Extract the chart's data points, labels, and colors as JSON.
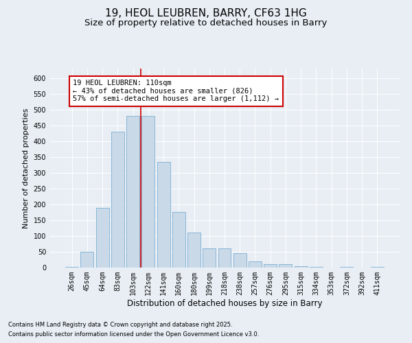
{
  "title1": "19, HEOL LEUBREN, BARRY, CF63 1HG",
  "title2": "Size of property relative to detached houses in Barry",
  "xlabel": "Distribution of detached houses by size in Barry",
  "ylabel": "Number of detached properties",
  "categories": [
    "26sqm",
    "45sqm",
    "64sqm",
    "83sqm",
    "103sqm",
    "122sqm",
    "141sqm",
    "160sqm",
    "180sqm",
    "199sqm",
    "218sqm",
    "238sqm",
    "257sqm",
    "276sqm",
    "295sqm",
    "315sqm",
    "334sqm",
    "353sqm",
    "372sqm",
    "392sqm",
    "411sqm"
  ],
  "values": [
    3,
    50,
    190,
    430,
    480,
    480,
    335,
    175,
    110,
    60,
    60,
    45,
    20,
    10,
    10,
    5,
    3,
    1,
    2,
    1,
    3
  ],
  "bar_color": "#c9d9e8",
  "bar_edge_color": "#7bafd4",
  "vline_color": "#cc0000",
  "vline_x": 4.5,
  "annotation_text": "19 HEOL LEUBREN: 110sqm\n← 43% of detached houses are smaller (826)\n57% of semi-detached houses are larger (1,112) →",
  "annotation_box_color": "#ffffff",
  "annotation_box_edge": "#cc0000",
  "ylim": [
    0,
    630
  ],
  "yticks": [
    0,
    50,
    100,
    150,
    200,
    250,
    300,
    350,
    400,
    450,
    500,
    550,
    600
  ],
  "background_color": "#e8eef4",
  "plot_bg_color": "#e8eef4",
  "footer1": "Contains HM Land Registry data © Crown copyright and database right 2025.",
  "footer2": "Contains public sector information licensed under the Open Government Licence v3.0.",
  "title_fontsize": 11,
  "subtitle_fontsize": 9.5,
  "tick_fontsize": 7,
  "ylabel_fontsize": 8,
  "xlabel_fontsize": 8.5,
  "annotation_fontsize": 7.5,
  "footer_fontsize": 6
}
